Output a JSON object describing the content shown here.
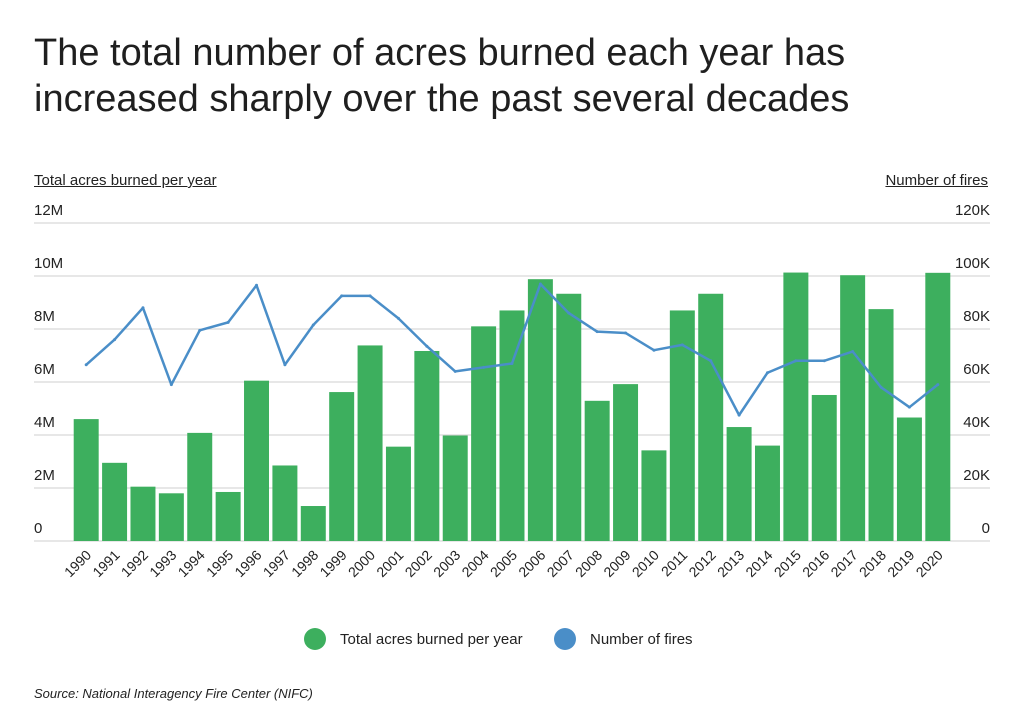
{
  "title_lines": [
    "The total number of acres burned each year has",
    "increased sharply over the past several decades"
  ],
  "source": "Source:  National Interagency Fire Center (NIFC)",
  "colors": {
    "bar": "#3daf5e",
    "line": "#4a8ec8",
    "grid": "#cfcfcf",
    "text": "#222222"
  },
  "chart_data": {
    "type": "bar",
    "categories": [
      "1990",
      "1991",
      "1992",
      "1993",
      "1994",
      "1995",
      "1996",
      "1997",
      "1998",
      "1999",
      "2000",
      "2001",
      "2002",
      "2003",
      "2004",
      "2005",
      "2006",
      "2007",
      "2008",
      "2009",
      "2010",
      "2011",
      "2012",
      "2013",
      "2014",
      "2015",
      "2016",
      "2017",
      "2018",
      "2019",
      "2020"
    ],
    "series": [
      {
        "name": "Total acres burned per year",
        "type": "bar",
        "axis": "left",
        "values": [
          4600000,
          2950000,
          2050000,
          1800000,
          4080000,
          1850000,
          6050000,
          2850000,
          1320000,
          5620000,
          7380000,
          3560000,
          7170000,
          3980000,
          8100000,
          8700000,
          9880000,
          9330000,
          5290000,
          5920000,
          3420000,
          8700000,
          9330000,
          4300000,
          3600000,
          10130000,
          5510000,
          10030000,
          8750000,
          4660000,
          10120000
        ]
      },
      {
        "name": "Number of fires",
        "type": "line",
        "axis": "right",
        "values": [
          66500,
          76000,
          88000,
          59000,
          79500,
          82500,
          96500,
          66500,
          81500,
          92500,
          92500,
          84000,
          73500,
          64000,
          65500,
          67000,
          97000,
          86000,
          79000,
          78500,
          72000,
          74000,
          68000,
          47500,
          63500,
          68000,
          68000,
          71500,
          58000,
          50500,
          59000
        ]
      }
    ],
    "y_left": {
      "label": "Total acres burned per year",
      "range": [
        0,
        12000000
      ],
      "ticks": [
        0,
        2000000,
        4000000,
        6000000,
        8000000,
        10000000,
        12000000
      ],
      "tick_labels": [
        "0",
        "2M",
        "4M",
        "6M",
        "8M",
        "10M",
        "12M"
      ]
    },
    "y_right": {
      "label": "Number of fires",
      "range": [
        0,
        120000
      ],
      "ticks": [
        0,
        20000,
        40000,
        60000,
        80000,
        100000,
        120000
      ],
      "tick_labels": [
        "0",
        "20K",
        "40K",
        "60K",
        "80K",
        "100K",
        "120K"
      ]
    },
    "grid": true,
    "legend": "bottom-center"
  }
}
